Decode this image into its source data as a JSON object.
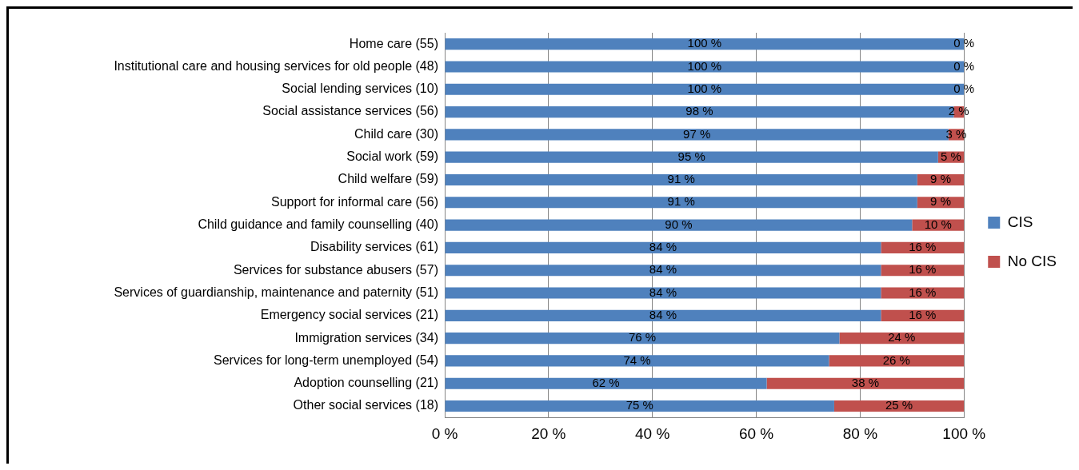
{
  "chart_data": {
    "type": "bar",
    "orientation": "horizontal",
    "stacked": true,
    "categories": [
      "Home care (55)",
      "Institutional care and housing services for old people (48)",
      "Social lending services (10)",
      "Social assistance services (56)",
      "Child care (30)",
      "Social work (59)",
      "Child welfare (59)",
      "Support for informal care (56)",
      "Child guidance and family counselling (40)",
      "Disability services (61)",
      "Services for substance abusers (57)",
      "Services of guardianship, maintenance and paternity (51)",
      "Emergency social services (21)",
      "Immigration services (34)",
      "Services for long-term unemployed (54)",
      "Adoption counselling (21)",
      "Other social services (18)"
    ],
    "series": [
      {
        "name": "CIS",
        "color": "#4f81bd",
        "values": [
          100,
          100,
          100,
          98,
          97,
          95,
          91,
          91,
          90,
          84,
          84,
          84,
          84,
          76,
          74,
          62,
          75
        ],
        "value_labels": [
          "100 %",
          "100 %",
          "100 %",
          "98 %",
          "97 %",
          "95 %",
          "91 %",
          "91 %",
          "90 %",
          "84 %",
          "84 %",
          "84 %",
          "84 %",
          "76 %",
          "74 %",
          "62 %",
          "75 %"
        ]
      },
      {
        "name": "No CIS",
        "color": "#c0504d",
        "values": [
          0,
          0,
          0,
          2,
          3,
          5,
          9,
          9,
          10,
          16,
          16,
          16,
          16,
          24,
          26,
          38,
          25
        ],
        "value_labels": [
          "0 %",
          "0 %",
          "0 %",
          "2 %",
          "3 %",
          "5 %",
          "9 %",
          "9 %",
          "10 %",
          "16 %",
          "16 %",
          "16 %",
          "16 %",
          "24 %",
          "26 %",
          "38 %",
          "25 %"
        ]
      }
    ],
    "xlim": [
      0,
      100
    ],
    "xticks": [
      {
        "value": 0,
        "label": "0 %"
      },
      {
        "value": 20,
        "label": "20 %"
      },
      {
        "value": 40,
        "label": "40 %"
      },
      {
        "value": 60,
        "label": "60 %"
      },
      {
        "value": 80,
        "label": "80 %"
      },
      {
        "value": 100,
        "label": "100 %"
      }
    ],
    "grid": "x",
    "legend": "right"
  }
}
